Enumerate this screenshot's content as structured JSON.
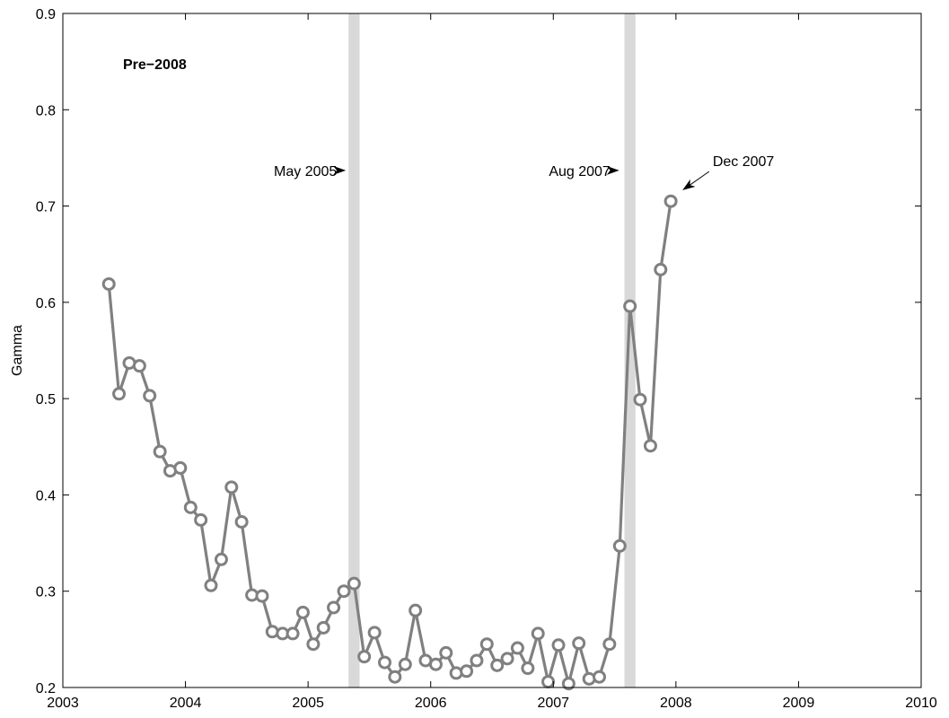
{
  "chart_data": {
    "type": "line",
    "title": "",
    "panel_label": "Pre−2008",
    "xlabel": "",
    "ylabel": "Gamma",
    "xlim": [
      2003,
      2010
    ],
    "ylim": [
      0.2,
      0.9
    ],
    "xticks": [
      2003,
      2004,
      2005,
      2006,
      2007,
      2008,
      2009,
      2010
    ],
    "yticks": [
      0.2,
      0.3,
      0.4,
      0.5,
      0.6,
      0.7,
      0.8,
      0.9
    ],
    "ytick_labels": [
      "0.2",
      "0.3",
      "0.4",
      "0.5",
      "0.6",
      "0.7",
      "0.8",
      "0.9"
    ],
    "grid": false,
    "colors": {
      "series": "#808080",
      "band": "#d9d9d9",
      "axes": "#000000"
    },
    "series": [
      {
        "x": [
          2003.375,
          2003.458,
          2003.542,
          2003.625,
          2003.708,
          2003.792,
          2003.875,
          2003.958,
          2004.042,
          2004.125,
          2004.208,
          2004.292,
          2004.375,
          2004.458,
          2004.542,
          2004.625,
          2004.708,
          2004.792,
          2004.875,
          2004.958,
          2005.042,
          2005.125,
          2005.208,
          2005.292,
          2005.375,
          2005.458,
          2005.542,
          2005.625,
          2005.708,
          2005.792,
          2005.875,
          2005.958,
          2006.042,
          2006.125,
          2006.208,
          2006.292,
          2006.375,
          2006.458,
          2006.542,
          2006.625,
          2006.708,
          2006.792,
          2006.875,
          2006.958,
          2007.042,
          2007.125,
          2007.208,
          2007.292,
          2007.375,
          2007.458,
          2007.542,
          2007.625,
          2007.708,
          2007.792,
          2007.875,
          2007.958
        ],
        "values": [
          0.619,
          0.505,
          0.537,
          0.534,
          0.503,
          0.445,
          0.425,
          0.428,
          0.387,
          0.374,
          0.306,
          0.333,
          0.408,
          0.372,
          0.296,
          0.295,
          0.258,
          0.256,
          0.256,
          0.278,
          0.245,
          0.262,
          0.283,
          0.3,
          0.308,
          0.232,
          0.257,
          0.226,
          0.211,
          0.224,
          0.28,
          0.228,
          0.224,
          0.236,
          0.215,
          0.217,
          0.228,
          0.245,
          0.223,
          0.23,
          0.241,
          0.22,
          0.256,
          0.206,
          0.244,
          0.204,
          0.246,
          0.209,
          0.211,
          0.245,
          0.347,
          0.596,
          0.499,
          0.451,
          0.634,
          0.705
        ]
      }
    ],
    "bands": [
      {
        "x_start": 2005.33,
        "x_end": 2005.42
      },
      {
        "x_start": 2007.58,
        "x_end": 2007.67
      }
    ],
    "annotations": [
      {
        "text": "May 2005",
        "x": 2005.25,
        "y": 0.737,
        "arrow_to_x": 2005.3,
        "arrow_to_y": 0.737,
        "anchor": "end"
      },
      {
        "text": "Aug 2007",
        "x": 2007.48,
        "y": 0.737,
        "arrow_to_x": 2007.53,
        "arrow_to_y": 0.737,
        "anchor": "end"
      },
      {
        "text": "Dec 2007",
        "x": 2008.3,
        "y": 0.747,
        "arrow_to_x": 2008.06,
        "arrow_to_y": 0.717,
        "anchor": "start"
      }
    ]
  }
}
